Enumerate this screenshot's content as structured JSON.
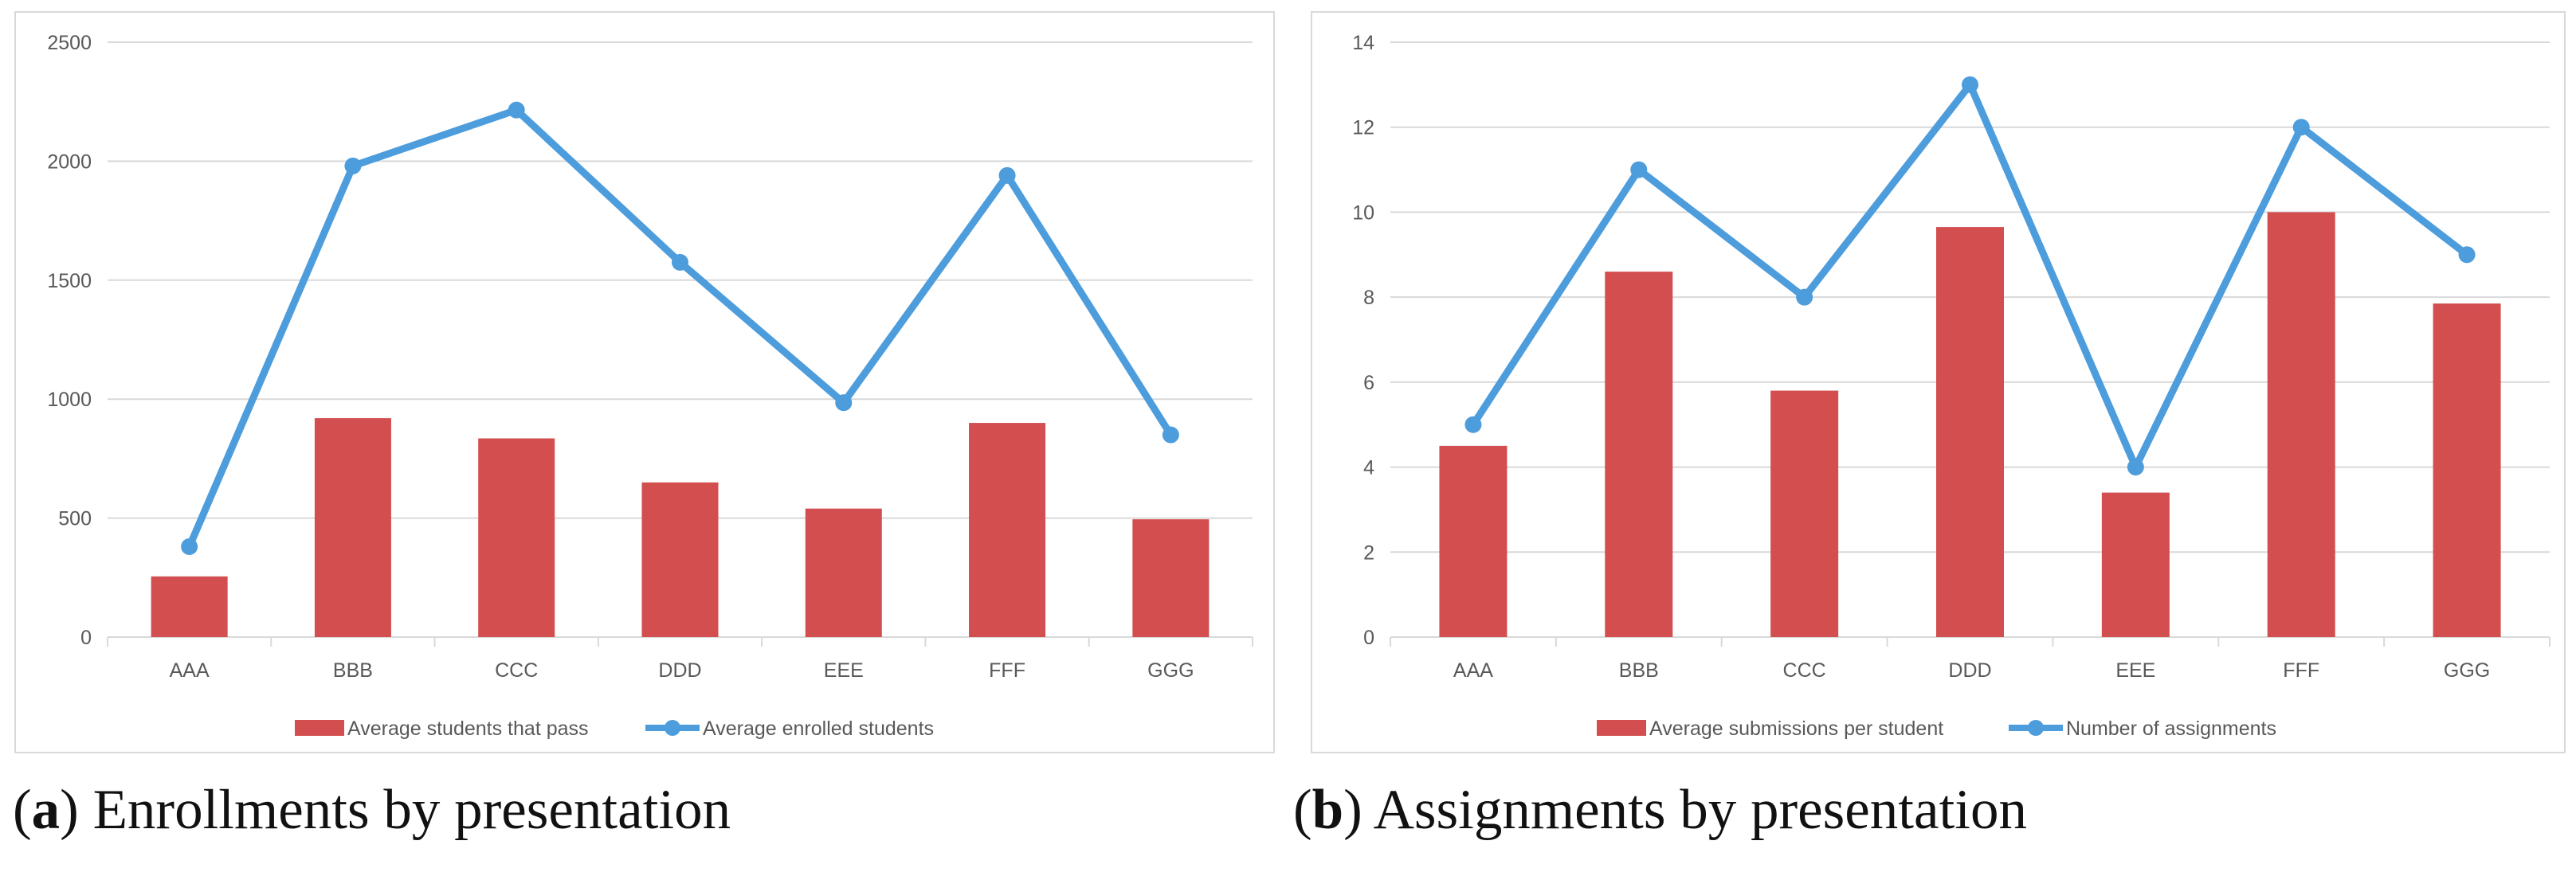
{
  "chart_data": [
    {
      "type": "bar+line",
      "categories": [
        "AAA",
        "BBB",
        "CCC",
        "DDD",
        "EEE",
        "FFF",
        "GGG"
      ],
      "series": [
        {
          "name": "Average students that pass",
          "kind": "bar",
          "color": "#d24e4f",
          "values": [
            255,
            920,
            835,
            650,
            540,
            900,
            495
          ]
        },
        {
          "name": "Average enrolled students",
          "kind": "line",
          "color": "#4d9ddd",
          "values": [
            380,
            1980,
            2215,
            1575,
            985,
            1940,
            850
          ]
        }
      ],
      "ylim": [
        0,
        2500
      ],
      "yticks": [
        "0",
        "500",
        "1000",
        "1500",
        "2000",
        "2500"
      ],
      "ytick_values": [
        0,
        500,
        1000,
        1500,
        2000,
        2500
      ],
      "legend_position": "bottom",
      "grid": true
    },
    {
      "type": "bar+line",
      "categories": [
        "AAA",
        "BBB",
        "CCC",
        "DDD",
        "EEE",
        "FFF",
        "GGG"
      ],
      "series": [
        {
          "name": "Average submissions per student",
          "kind": "bar",
          "color": "#d24e4f",
          "values": [
            4.5,
            8.6,
            5.8,
            9.65,
            3.4,
            10.0,
            7.85
          ]
        },
        {
          "name": "Number of assignments",
          "kind": "line",
          "color": "#4d9ddd",
          "values": [
            5,
            11,
            8,
            13,
            4,
            12,
            9
          ]
        }
      ],
      "ylim": [
        0,
        14
      ],
      "yticks": [
        "0",
        "2",
        "4",
        "6",
        "8",
        "10",
        "12",
        "14"
      ],
      "ytick_values": [
        0,
        2,
        4,
        6,
        8,
        10,
        12,
        14
      ],
      "legend_position": "bottom",
      "grid": true
    }
  ],
  "captions": [
    {
      "letter": "a",
      "open": "(",
      "close": ")",
      "text": " Enrollments by presentation"
    },
    {
      "letter": "b",
      "open": "(",
      "close": ")",
      "text": " Assignments by presentation"
    }
  ]
}
